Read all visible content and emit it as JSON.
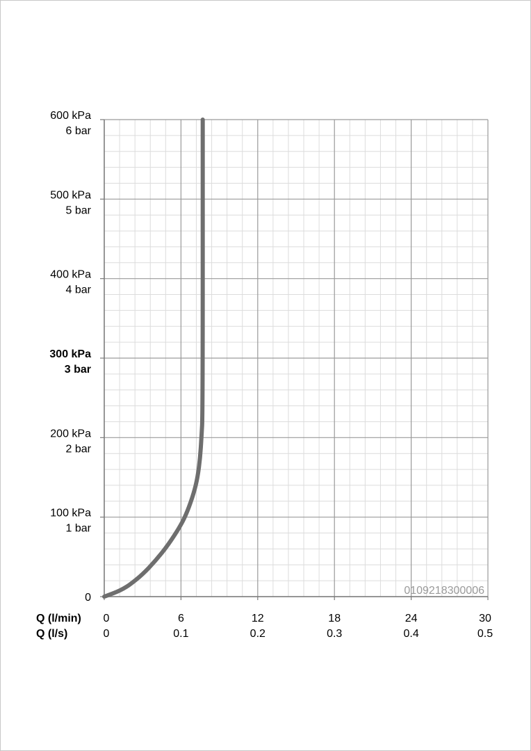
{
  "chart_data": {
    "type": "line",
    "x": [
      0,
      0.5,
      1,
      1.5,
      2,
      3,
      4,
      5,
      6,
      6.5,
      7,
      7.3,
      7.5,
      7.6,
      7.7,
      7.7
    ],
    "series": [
      {
        "values": [
          0,
          3,
          6,
          10,
          15,
          28,
          45,
          65,
          90,
          107,
          130,
          150,
          175,
          200,
          230,
          600
        ]
      }
    ],
    "xlim": [
      0,
      30
    ],
    "ylim": [
      0,
      600
    ],
    "grid": true,
    "y_ticks": [
      {
        "value": 600,
        "kpa": "600 kPa",
        "bar": "6 bar",
        "bold": false
      },
      {
        "value": 500,
        "kpa": "500 kPa",
        "bar": "5 bar",
        "bold": false
      },
      {
        "value": 400,
        "kpa": "400 kPa",
        "bar": "4 bar",
        "bold": false
      },
      {
        "value": 300,
        "kpa": "300 kPa",
        "bar": "3 bar",
        "bold": true
      },
      {
        "value": 200,
        "kpa": "200 kPa",
        "bar": "2 bar",
        "bold": false
      },
      {
        "value": 100,
        "kpa": "100 kPa",
        "bar": "1 bar",
        "bold": false
      },
      {
        "value": 0,
        "kpa": "0",
        "bar": "",
        "bold": false
      }
    ],
    "x_ticks": [
      {
        "value": 0,
        "lmin": "0",
        "ls": "0"
      },
      {
        "value": 6,
        "lmin": "6",
        "ls": "0.1"
      },
      {
        "value": 12,
        "lmin": "12",
        "ls": "0.2"
      },
      {
        "value": 18,
        "lmin": "18",
        "ls": "0.3"
      },
      {
        "value": 24,
        "lmin": "24",
        "ls": "0.4"
      },
      {
        "value": 30,
        "lmin": "30",
        "ls": "0.5"
      }
    ],
    "xlabel_lmin": "Q (l/min)",
    "xlabel_ls": "Q (l/s)",
    "code": "0109218300006",
    "colors": {
      "curve": "#6e6e6e",
      "major_grid": "#9a9a9a",
      "minor_grid": "#dcdcdc",
      "axis": "#7a7a7a"
    }
  }
}
